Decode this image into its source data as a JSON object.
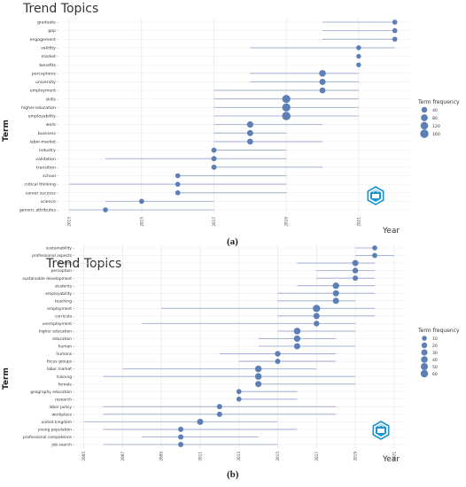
{
  "chart_data": [
    {
      "type": "scatter",
      "title": "Trend Topics",
      "ylabel": "Term",
      "xlabel": "Year",
      "caption": "(a)",
      "x_ticks": [
        2013,
        2015,
        2017,
        2019,
        2021
      ],
      "xlim": [
        2012.8,
        2022.4
      ],
      "legend_title": "Term frequency",
      "legend_values": [
        40,
        80,
        120,
        160
      ],
      "terms": [
        {
          "term": "graduate",
          "start": 2020,
          "end": 2022,
          "peak": 2022,
          "freq": 20
        },
        {
          "term": "gap",
          "start": 2020,
          "end": 2022,
          "peak": 2022,
          "freq": 20
        },
        {
          "term": "engagement",
          "start": 2020,
          "end": 2022,
          "peak": 2022,
          "freq": 20
        },
        {
          "term": "validity",
          "start": 2018,
          "end": 2022,
          "peak": 2021,
          "freq": 18
        },
        {
          "term": "market",
          "start": 2021,
          "end": 2021,
          "peak": 2021,
          "freq": 15
        },
        {
          "term": "benefits",
          "start": 2021,
          "end": 2021,
          "peak": 2021,
          "freq": 15
        },
        {
          "term": "perceptions",
          "start": 2018,
          "end": 2021,
          "peak": 2020,
          "freq": 70
        },
        {
          "term": "university",
          "start": 2018,
          "end": 2021,
          "peak": 2020,
          "freq": 55
        },
        {
          "term": "employment",
          "start": 2017,
          "end": 2021,
          "peak": 2020,
          "freq": 45
        },
        {
          "term": "skills",
          "start": 2017,
          "end": 2021,
          "peak": 2019,
          "freq": 150
        },
        {
          "term": "higher-education",
          "start": 2017,
          "end": 2021,
          "peak": 2019,
          "freq": 150
        },
        {
          "term": "employability",
          "start": 2017,
          "end": 2021,
          "peak": 2019,
          "freq": 170
        },
        {
          "term": "work",
          "start": 2017,
          "end": 2020,
          "peak": 2018,
          "freq": 60
        },
        {
          "term": "business",
          "start": 2017,
          "end": 2019,
          "peak": 2018,
          "freq": 50
        },
        {
          "term": "labor-market",
          "start": 2017,
          "end": 2020,
          "peak": 2018,
          "freq": 45
        },
        {
          "term": "industry",
          "start": 2017,
          "end": 2019,
          "peak": 2017,
          "freq": 25
        },
        {
          "term": "validation",
          "start": 2014,
          "end": 2019,
          "peak": 2017,
          "freq": 25
        },
        {
          "term": "transition",
          "start": 2017,
          "end": 2020,
          "peak": 2017,
          "freq": 25
        },
        {
          "term": "school",
          "start": 2016,
          "end": 2019,
          "peak": 2016,
          "freq": 20
        },
        {
          "term": "critical thinking",
          "start": 2013,
          "end": 2019,
          "peak": 2016,
          "freq": 20
        },
        {
          "term": "career success",
          "start": 2016,
          "end": 2019,
          "peak": 2016,
          "freq": 20
        },
        {
          "term": "science",
          "start": 2014,
          "end": 2017,
          "peak": 2015,
          "freq": 20
        },
        {
          "term": "generic attributes",
          "start": 2013,
          "end": 2017,
          "peak": 2014,
          "freq": 20
        }
      ]
    },
    {
      "type": "scatter",
      "title": "Trend Topics",
      "ylabel": "Term",
      "xlabel": "Year",
      "caption": "(b)",
      "x_ticks": [
        2005,
        2007,
        2009,
        2011,
        2013,
        2015,
        2017,
        2019,
        2021
      ],
      "xlim": [
        2004.7,
        2021.6
      ],
      "legend_title": "Term frequency",
      "legend_values": [
        10,
        20,
        30,
        40,
        50,
        60
      ],
      "terms": [
        {
          "term": "sustainability",
          "start": 2019,
          "end": 2020,
          "peak": 2020,
          "freq": 12
        },
        {
          "term": "professional aspects",
          "start": 2019,
          "end": 2021,
          "peak": 2020,
          "freq": 12
        },
        {
          "term": "student",
          "start": 2016,
          "end": 2020,
          "peak": 2019,
          "freq": 30
        },
        {
          "term": "perception",
          "start": 2017,
          "end": 2020,
          "peak": 2019,
          "freq": 20
        },
        {
          "term": "sustainable development",
          "start": 2017,
          "end": 2020,
          "peak": 2019,
          "freq": 15
        },
        {
          "term": "students",
          "start": 2016,
          "end": 2020,
          "peak": 2018,
          "freq": 35
        },
        {
          "term": "employability",
          "start": 2015,
          "end": 2020,
          "peak": 2018,
          "freq": 30
        },
        {
          "term": "teaching",
          "start": 2015,
          "end": 2019,
          "peak": 2018,
          "freq": 30
        },
        {
          "term": "employment",
          "start": 2009,
          "end": 2020,
          "peak": 2017,
          "freq": 55
        },
        {
          "term": "curricula",
          "start": 2015,
          "end": 2020,
          "peak": 2017,
          "freq": 30
        },
        {
          "term": "unemployment",
          "start": 2008,
          "end": 2019,
          "peak": 2017,
          "freq": 20
        },
        {
          "term": "higher education",
          "start": 2015,
          "end": 2019,
          "peak": 2016,
          "freq": 40
        },
        {
          "term": "education",
          "start": 2014,
          "end": 2018,
          "peak": 2016,
          "freq": 35
        },
        {
          "term": "human",
          "start": 2014,
          "end": 2019,
          "peak": 2016,
          "freq": 30
        },
        {
          "term": "humans",
          "start": 2012,
          "end": 2018,
          "peak": 2015,
          "freq": 20
        },
        {
          "term": "focus groups",
          "start": 2013,
          "end": 2018,
          "peak": 2015,
          "freq": 15
        },
        {
          "term": "labor market",
          "start": 2007,
          "end": 2017,
          "peak": 2014,
          "freq": 40
        },
        {
          "term": "training",
          "start": 2006,
          "end": 2019,
          "peak": 2014,
          "freq": 40
        },
        {
          "term": "female",
          "start": 2014,
          "end": 2019,
          "peak": 2014,
          "freq": 30
        },
        {
          "term": "geography education",
          "start": 2013,
          "end": 2016,
          "peak": 2013,
          "freq": 12
        },
        {
          "term": "research",
          "start": 2013,
          "end": 2016,
          "peak": 2013,
          "freq": 12
        },
        {
          "term": "labor policy",
          "start": 2006,
          "end": 2018,
          "peak": 2012,
          "freq": 15
        },
        {
          "term": "workplace",
          "start": 2006,
          "end": 2018,
          "peak": 2012,
          "freq": 15
        },
        {
          "term": "united kingdom",
          "start": 2005,
          "end": 2015,
          "peak": 2011,
          "freq": 30
        },
        {
          "term": "young population",
          "start": 2006,
          "end": 2016,
          "peak": 2010,
          "freq": 15
        },
        {
          "term": "professional competence",
          "start": 2008,
          "end": 2014,
          "peak": 2010,
          "freq": 15
        },
        {
          "term": "job search",
          "start": 2006,
          "end": 2015,
          "peak": 2010,
          "freq": 15
        }
      ]
    }
  ],
  "colors": {
    "line": "#aab4d6",
    "point": "#5c7fb5",
    "grid": "#e9e9e9",
    "icon": "#1a93cf"
  },
  "icons": {
    "logo": "checkupdates-icon"
  }
}
